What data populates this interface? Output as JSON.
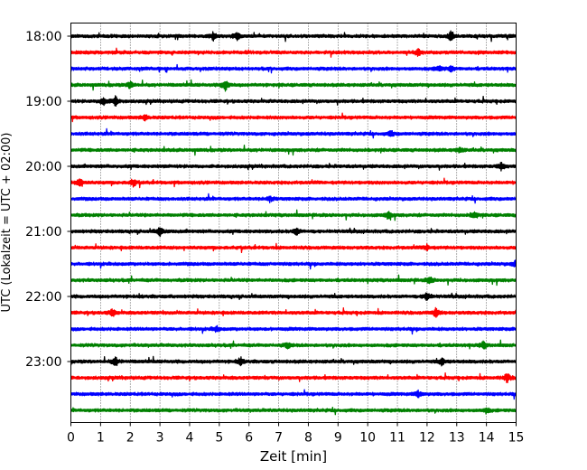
{
  "chart_data": {
    "type": "line",
    "title": "",
    "xlabel": "Zeit  [min]",
    "ylabel": "UTC (Lokalzeit = UTC + 02:00)",
    "xlim": [
      0,
      15
    ],
    "x_ticks": [
      "0",
      "1",
      "2",
      "3",
      "4",
      "5",
      "6",
      "7",
      "8",
      "9",
      "10",
      "11",
      "12",
      "13",
      "14",
      "15"
    ],
    "y_tick_labels": [
      "18:00",
      "19:00",
      "20:00",
      "21:00",
      "22:00",
      "23:00"
    ],
    "grid": "vertical dotted",
    "trace_interval_minutes": 15,
    "color_cycle": [
      "#000000",
      "#ff0000",
      "#0000ff",
      "#008000"
    ],
    "series": [
      {
        "time": "18:00",
        "color": "#000000",
        "events": [
          {
            "min": 4.8,
            "amp": 5
          },
          {
            "min": 5.6,
            "amp": 4
          },
          {
            "min": 12.8,
            "amp": 5
          }
        ]
      },
      {
        "time": "18:15",
        "color": "#ff0000",
        "events": [
          {
            "min": 11.7,
            "amp": 4
          }
        ]
      },
      {
        "time": "18:30",
        "color": "#0000ff",
        "events": [
          {
            "min": 12.4,
            "amp": 3
          },
          {
            "min": 12.8,
            "amp": 3
          }
        ]
      },
      {
        "time": "18:45",
        "color": "#008000",
        "events": [
          {
            "min": 2.0,
            "amp": 4
          },
          {
            "min": 5.2,
            "amp": 7
          }
        ]
      },
      {
        "time": "19:00",
        "color": "#000000",
        "events": [
          {
            "min": 1.1,
            "amp": 5
          },
          {
            "min": 1.5,
            "amp": 6
          }
        ]
      },
      {
        "time": "19:15",
        "color": "#ff0000",
        "events": [
          {
            "min": 2.5,
            "amp": 3
          }
        ]
      },
      {
        "time": "19:30",
        "color": "#0000ff",
        "events": [
          {
            "min": 10.8,
            "amp": 3
          }
        ]
      },
      {
        "time": "19:45",
        "color": "#008000",
        "events": [
          {
            "min": 13.1,
            "amp": 3
          }
        ]
      },
      {
        "time": "20:00",
        "color": "#000000",
        "events": [
          {
            "min": 14.5,
            "amp": 4
          }
        ]
      },
      {
        "time": "20:15",
        "color": "#ff0000",
        "events": [
          {
            "min": 0.3,
            "amp": 5
          },
          {
            "min": 2.1,
            "amp": 4
          }
        ]
      },
      {
        "time": "20:30",
        "color": "#0000ff",
        "events": [
          {
            "min": 6.7,
            "amp": 3
          }
        ]
      },
      {
        "time": "20:45",
        "color": "#008000",
        "events": [
          {
            "min": 10.7,
            "amp": 4
          },
          {
            "min": 13.6,
            "amp": 4
          }
        ]
      },
      {
        "time": "21:00",
        "color": "#000000",
        "events": [
          {
            "min": 3.0,
            "amp": 5
          },
          {
            "min": 7.6,
            "amp": 4
          }
        ]
      },
      {
        "time": "21:15",
        "color": "#ff0000",
        "events": [
          {
            "min": 12.0,
            "amp": 3
          }
        ]
      },
      {
        "time": "21:30",
        "color": "#0000ff",
        "events": [
          {
            "min": 15.0,
            "amp": 5
          }
        ]
      },
      {
        "time": "21:45",
        "color": "#008000",
        "events": [
          {
            "min": 12.1,
            "amp": 4
          }
        ]
      },
      {
        "time": "22:00",
        "color": "#000000",
        "events": [
          {
            "min": 12.0,
            "amp": 5
          }
        ]
      },
      {
        "time": "22:15",
        "color": "#ff0000",
        "events": [
          {
            "min": 1.4,
            "amp": 4
          },
          {
            "min": 12.3,
            "amp": 5
          }
        ]
      },
      {
        "time": "22:30",
        "color": "#0000ff",
        "events": [
          {
            "min": 4.9,
            "amp": 3
          }
        ]
      },
      {
        "time": "22:45",
        "color": "#008000",
        "events": [
          {
            "min": 7.3,
            "amp": 3
          },
          {
            "min": 13.9,
            "amp": 4
          }
        ]
      },
      {
        "time": "23:00",
        "color": "#000000",
        "events": [
          {
            "min": 1.5,
            "amp": 5
          },
          {
            "min": 5.7,
            "amp": 4
          },
          {
            "min": 12.5,
            "amp": 4
          }
        ]
      },
      {
        "time": "23:15",
        "color": "#ff0000",
        "events": [
          {
            "min": 14.7,
            "amp": 5
          }
        ]
      },
      {
        "time": "23:30",
        "color": "#0000ff",
        "events": [
          {
            "min": 11.7,
            "amp": 4
          }
        ]
      },
      {
        "time": "23:45",
        "color": "#008000",
        "events": [
          {
            "min": 14.0,
            "amp": 3
          }
        ]
      }
    ]
  }
}
